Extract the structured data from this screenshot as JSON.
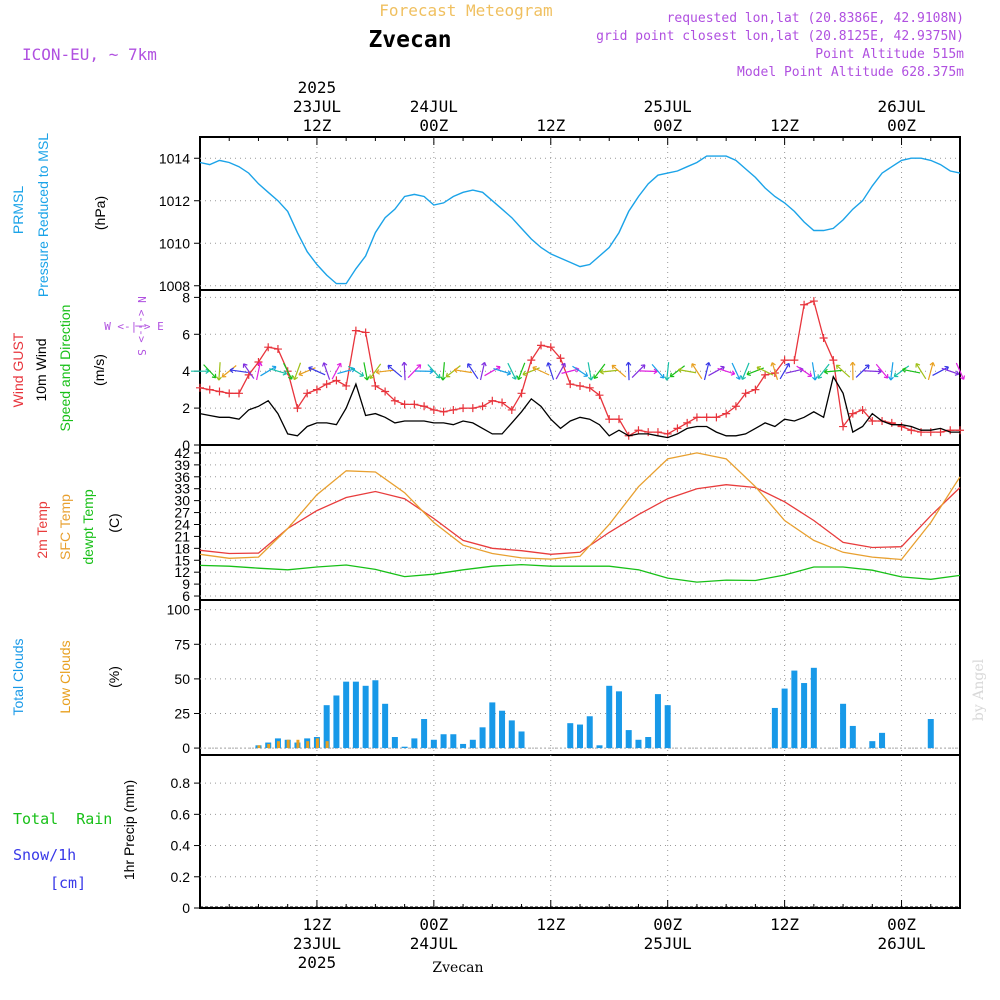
{
  "header": {
    "forecast_title": "Forecast Meteogram",
    "location": "Zvecan",
    "model": "ICON-EU, ~ 7km",
    "requested": "requested lon,lat (20.8386E, 42.9108N)",
    "grid_point": "grid point closest lon,lat (20.8125E, 42.9375N)",
    "point_alt": "Point Altitude 515m",
    "model_alt": "Model Point Altitude 628.375m",
    "footer_location": "Zvecan",
    "credit": "by Angel"
  },
  "time_axis": {
    "start_hour": 0,
    "end_hour": 78,
    "top_labels": [
      {
        "hour": 12,
        "lines": [
          "2025",
          "23JUL",
          "12Z"
        ]
      },
      {
        "hour": 24,
        "lines": [
          "24JUL",
          "00Z"
        ]
      },
      {
        "hour": 36,
        "lines": [
          "12Z"
        ]
      },
      {
        "hour": 48,
        "lines": [
          "25JUL",
          "00Z"
        ]
      },
      {
        "hour": 60,
        "lines": [
          "12Z"
        ]
      },
      {
        "hour": 72,
        "lines": [
          "26JUL",
          "00Z"
        ]
      }
    ],
    "bottom_labels": [
      {
        "hour": 12,
        "lines": [
          "12Z",
          "23JUL",
          "2025"
        ]
      },
      {
        "hour": 24,
        "lines": [
          "00Z",
          "24JUL"
        ]
      },
      {
        "hour": 36,
        "lines": [
          "12Z"
        ]
      },
      {
        "hour": 48,
        "lines": [
          "00Z",
          "25JUL"
        ]
      },
      {
        "hour": 60,
        "lines": [
          "12Z"
        ]
      },
      {
        "hour": 72,
        "lines": [
          "00Z",
          "26JUL"
        ]
      }
    ]
  },
  "panels_text": {
    "pressure": {
      "label1": "PRMSL",
      "label2": "Pressure Reduced to MSL",
      "unit": "(hPa)"
    },
    "wind": {
      "label1": "Wind GUST",
      "label2": "10m Wind",
      "label3": "Speed and Direction",
      "unit": "(m/s)",
      "compass": "W <-|-> E",
      "compass_v": "N <-|-> S"
    },
    "temp": {
      "label1": "2m Temp",
      "label2": "SFC Temp",
      "label3": "dewpt Temp",
      "unit": "(C)"
    },
    "clouds": {
      "label1": "Total Clouds",
      "label2": "Low Clouds",
      "unit": "(%)"
    },
    "precip": {
      "label1": "Total  Rain",
      "label2": "Snow/1h",
      "label3": "[cm]",
      "unit": "1hr Precip (mm)"
    }
  },
  "colors": {
    "pressure": "#1ba3e8",
    "gust": "#e8343c",
    "wind": "#000000",
    "t2m": "#e83c3c",
    "sfc": "#e8a030",
    "dewpt": "#18c018",
    "total_clouds": "#1899e8",
    "low_clouds": "#e8a020",
    "rain": "#18c018",
    "snow": "#3838e8",
    "title": "#f0c060",
    "meta": "#b050e0"
  },
  "chart_data": [
    {
      "type": "line",
      "name": "pressure",
      "ylim": [
        1007.8,
        1015
      ],
      "yticks": [
        1008,
        1010,
        1012,
        1014
      ],
      "x": [
        0,
        1,
        2,
        3,
        4,
        5,
        6,
        7,
        8,
        9,
        10,
        11,
        12,
        13,
        14,
        15,
        16,
        17,
        18,
        19,
        20,
        21,
        22,
        23,
        24,
        25,
        26,
        27,
        28,
        29,
        30,
        31,
        32,
        33,
        34,
        35,
        36,
        37,
        38,
        39,
        40,
        41,
        42,
        43,
        44,
        45,
        46,
        47,
        48,
        49,
        50,
        51,
        52,
        53,
        54,
        55,
        56,
        57,
        58,
        59,
        60,
        61,
        62,
        63,
        64,
        65,
        66,
        67,
        68,
        69,
        70,
        71,
        72,
        73,
        74,
        75,
        76,
        77,
        78
      ],
      "series": [
        {
          "values": [
            1013.8,
            1013.7,
            1013.9,
            1013.8,
            1013.6,
            1013.3,
            1012.8,
            1012.4,
            1012.0,
            1011.5,
            1010.5,
            1009.6,
            1009.0,
            1008.5,
            1008.1,
            1008.1,
            1008.8,
            1009.4,
            1010.5,
            1011.2,
            1011.6,
            1012.2,
            1012.3,
            1012.2,
            1011.8,
            1011.9,
            1012.2,
            1012.4,
            1012.5,
            1012.4,
            1012.0,
            1011.6,
            1011.2,
            1010.7,
            1010.2,
            1009.8,
            1009.5,
            1009.3,
            1009.1,
            1008.9,
            1009.0,
            1009.4,
            1009.8,
            1010.5,
            1011.5,
            1012.2,
            1012.8,
            1013.2,
            1013.3,
            1013.4,
            1013.6,
            1013.8,
            1014.1,
            1014.1,
            1014.1,
            1013.9,
            1013.5,
            1013.1,
            1012.6,
            1012.2,
            1011.9,
            1011.5,
            1011.0,
            1010.6,
            1010.6,
            1010.7,
            1011.1,
            1011.6,
            1012.0,
            1012.7,
            1013.3,
            1013.6,
            1013.9,
            1014.0,
            1014.0,
            1013.9,
            1013.7,
            1013.4,
            1013.3
          ]
        }
      ]
    },
    {
      "type": "line",
      "name": "wind",
      "ylim": [
        0,
        8.4
      ],
      "yticks": [
        0,
        2,
        4,
        6,
        8
      ],
      "x": [
        0,
        1,
        2,
        3,
        4,
        5,
        6,
        7,
        8,
        9,
        10,
        11,
        12,
        13,
        14,
        15,
        16,
        17,
        18,
        19,
        20,
        21,
        22,
        23,
        24,
        25,
        26,
        27,
        28,
        29,
        30,
        31,
        32,
        33,
        34,
        35,
        36,
        37,
        38,
        39,
        40,
        41,
        42,
        43,
        44,
        45,
        46,
        47,
        48,
        49,
        50,
        51,
        52,
        53,
        54,
        55,
        56,
        57,
        58,
        59,
        60,
        61,
        62,
        63,
        64,
        65,
        66,
        67,
        68,
        69,
        70,
        71,
        72,
        73,
        74,
        75,
        76,
        77,
        78
      ],
      "series": [
        {
          "name": "Wind GUST",
          "values": [
            3.1,
            3.0,
            2.9,
            2.8,
            2.8,
            3.8,
            4.5,
            5.3,
            5.2,
            4.0,
            2.0,
            2.8,
            3.0,
            3.3,
            3.5,
            3.2,
            6.2,
            6.1,
            3.2,
            2.9,
            2.4,
            2.2,
            2.2,
            2.1,
            1.9,
            1.8,
            1.9,
            2.0,
            2.0,
            2.1,
            2.4,
            2.3,
            1.9,
            2.8,
            4.6,
            5.4,
            5.3,
            4.7,
            3.3,
            3.2,
            3.1,
            2.7,
            1.4,
            1.4,
            0.5,
            0.8,
            0.7,
            0.7,
            0.6,
            0.9,
            1.2,
            1.5,
            1.5,
            1.5,
            1.7,
            2.1,
            2.8,
            3.0,
            3.8,
            3.9,
            4.6,
            4.6,
            7.6,
            7.8,
            5.8,
            4.6,
            1.0,
            1.7,
            1.9,
            1.3,
            1.3,
            1.2,
            1.0,
            0.8,
            0.7,
            0.7,
            0.7,
            0.8,
            0.8
          ]
        },
        {
          "name": "10m Wind",
          "values": [
            1.7,
            1.6,
            1.5,
            1.5,
            1.4,
            1.9,
            2.1,
            2.4,
            1.7,
            0.6,
            0.5,
            1.0,
            1.2,
            1.2,
            1.1,
            2.0,
            3.3,
            1.6,
            1.7,
            1.5,
            1.2,
            1.3,
            1.3,
            1.3,
            1.2,
            1.2,
            1.1,
            1.3,
            1.2,
            0.9,
            0.6,
            0.6,
            1.2,
            1.8,
            2.5,
            2.1,
            1.4,
            0.9,
            1.3,
            1.5,
            1.4,
            1.1,
            0.5,
            0.8,
            0.5,
            0.6,
            0.6,
            0.5,
            0.4,
            0.6,
            0.9,
            1.0,
            1.0,
            0.7,
            0.5,
            0.5,
            0.6,
            0.9,
            1.2,
            1.0,
            1.4,
            1.3,
            1.5,
            1.8,
            1.5,
            3.7,
            2.8,
            0.7,
            1.0,
            1.7,
            1.3,
            1.1,
            1.1,
            1.0,
            0.8,
            0.8,
            0.9,
            0.7,
            0.7
          ]
        }
      ]
    },
    {
      "type": "line",
      "name": "temperature",
      "ylim": [
        5,
        44
      ],
      "yticks": [
        6,
        9,
        12,
        15,
        18,
        21,
        24,
        27,
        30,
        33,
        36,
        39,
        42
      ],
      "x": [
        0,
        3,
        6,
        9,
        12,
        15,
        18,
        21,
        24,
        27,
        30,
        33,
        36,
        39,
        42,
        45,
        48,
        51,
        54,
        57,
        60,
        63,
        66,
        69,
        72,
        75,
        78
      ],
      "series": [
        {
          "name": "2m Temp",
          "values": [
            17.5,
            16.7,
            16.8,
            23,
            27.5,
            30.8,
            32.3,
            30.5,
            25.5,
            20,
            18,
            17.4,
            16.5,
            17,
            22,
            26.5,
            30.5,
            33,
            34,
            33.3,
            29.7,
            25,
            19.5,
            18.2,
            18.4,
            26.2,
            33.3
          ]
        },
        {
          "name": "SFC Temp",
          "values": [
            16.5,
            15.5,
            15.8,
            23,
            31.5,
            37.5,
            37.2,
            32,
            24.5,
            18.8,
            16.7,
            15.6,
            15.3,
            16,
            24,
            33.5,
            40.5,
            42,
            40.5,
            33.5,
            25,
            20,
            17,
            15.8,
            15.2,
            24.5,
            36
          ]
        },
        {
          "name": "dewpt Temp",
          "values": [
            13.7,
            13.5,
            13,
            12.6,
            13.3,
            13.8,
            12.7,
            10.9,
            11.5,
            12.6,
            13.5,
            13.9,
            13.5,
            13.5,
            13.5,
            12.6,
            10.5,
            9.5,
            10,
            9.9,
            11.3,
            13.3,
            13.3,
            12.5,
            10.8,
            10.2,
            11.2
          ]
        }
      ]
    },
    {
      "type": "bar",
      "name": "clouds",
      "ylim": [
        -5,
        107
      ],
      "yticks": [
        0,
        25,
        50,
        75,
        100
      ],
      "x": [
        0,
        1,
        2,
        3,
        4,
        5,
        6,
        7,
        8,
        9,
        10,
        11,
        12,
        13,
        14,
        15,
        16,
        17,
        18,
        19,
        20,
        21,
        22,
        23,
        24,
        25,
        26,
        27,
        28,
        29,
        30,
        31,
        32,
        33,
        34,
        35,
        36,
        37,
        38,
        39,
        40,
        41,
        42,
        43,
        44,
        45,
        46,
        47,
        48,
        49,
        50,
        51,
        52,
        53,
        54,
        55,
        56,
        57,
        58,
        59,
        60,
        61,
        62,
        63,
        64,
        65,
        66,
        67,
        68,
        69,
        70,
        71,
        72,
        73,
        74,
        75,
        76,
        77,
        78
      ],
      "series": [
        {
          "name": "Total Clouds",
          "values": [
            0,
            0,
            0,
            0,
            0,
            0,
            2,
            4,
            7,
            6,
            4,
            7,
            8,
            31,
            38,
            48,
            48,
            45,
            49,
            32,
            8,
            1,
            7,
            21,
            6,
            10,
            10,
            3,
            6,
            15,
            33,
            27,
            20,
            12,
            0,
            0,
            0,
            0,
            18,
            17,
            23,
            2,
            45,
            41,
            13,
            6,
            8,
            39,
            31,
            0,
            0,
            0,
            0,
            0,
            0,
            0,
            0,
            0,
            0,
            29,
            43,
            56,
            47,
            58,
            0,
            0,
            32,
            16,
            0,
            5,
            11,
            0,
            0,
            0,
            0,
            21,
            0,
            0,
            0
          ]
        },
        {
          "name": "Low Clouds",
          "values": [
            0,
            0,
            0,
            0,
            0,
            0,
            2,
            3,
            5,
            6,
            6,
            5,
            7,
            5,
            0,
            0,
            0,
            0,
            0,
            0,
            0,
            0,
            0,
            0,
            0,
            0,
            0,
            0,
            0,
            0,
            0,
            0,
            0,
            0,
            0,
            0,
            0,
            0,
            0,
            0,
            0,
            0,
            0,
            0,
            0,
            0,
            0,
            0,
            0,
            0,
            0,
            0,
            0,
            0,
            0,
            0,
            0,
            0,
            0,
            0,
            0,
            0,
            0,
            0,
            0,
            0,
            0,
            0,
            0,
            0,
            0,
            0,
            0,
            0,
            0,
            0,
            0,
            0,
            0
          ]
        }
      ]
    },
    {
      "type": "bar",
      "name": "precipitation",
      "ylim": [
        0,
        0.98
      ],
      "yticks": [
        0,
        0.2,
        0.4,
        0.6,
        0.8
      ],
      "ytick_labels": [
        "0",
        "0.2",
        "0.4",
        "0.6",
        "0.8"
      ],
      "series": [
        {
          "name": "Total Rain",
          "values": []
        }
      ]
    }
  ]
}
